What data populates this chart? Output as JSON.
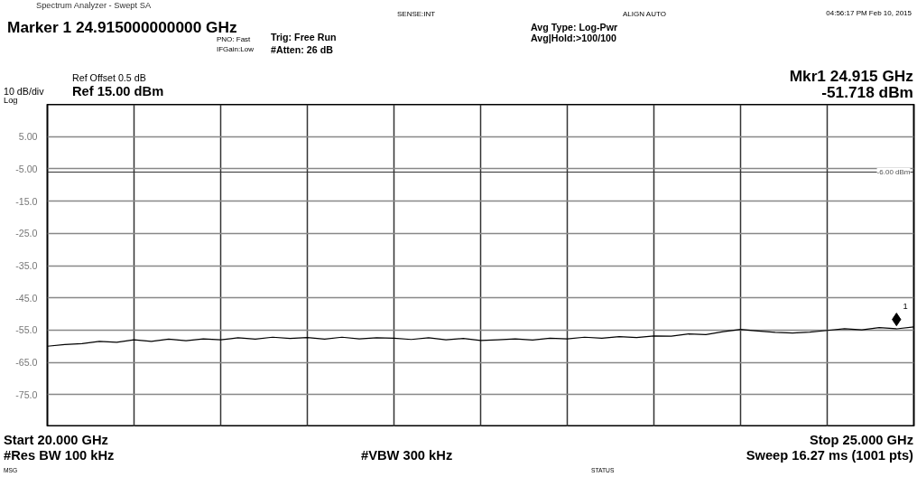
{
  "chart_data": {
    "type": "line",
    "title": "Spectrum Analyzer - Swept SA",
    "categories": [
      null,
      null,
      null,
      null,
      null,
      null,
      null,
      null,
      null,
      null,
      null,
      null,
      null,
      null,
      null,
      null,
      null,
      null,
      null,
      null,
      null,
      null,
      null,
      null,
      null,
      null,
      null,
      null,
      null,
      null,
      null,
      null,
      null,
      null,
      null,
      null,
      null,
      null,
      null,
      null,
      null,
      null,
      null,
      null,
      null,
      null,
      null,
      null,
      null,
      null,
      null
    ],
    "ylim": [
      -85,
      15
    ],
    "yticks": [
      {
        "value": 5,
        "label": "5.00"
      },
      {
        "value": -5,
        "label": "-5.00"
      },
      {
        "value": -15,
        "label": "-15.0"
      },
      {
        "value": -25,
        "label": "-25.0"
      },
      {
        "value": -35,
        "label": "-35.0"
      },
      {
        "value": -45,
        "label": "-45.0"
      },
      {
        "value": -55,
        "label": "-55.0"
      },
      {
        "value": -65,
        "label": "-65.0"
      },
      {
        "value": -75,
        "label": "-75.0"
      }
    ],
    "grid": true,
    "tick_labels": "y",
    "ref_lines": [
      {
        "axis": "y",
        "value": -6,
        "label": "-6.00 dBm",
        "color": "#333333"
      }
    ],
    "series": [
      {
        "color": "#000000",
        "values": [
          -60,
          -59.5,
          -59.2,
          -58.5,
          -58.8,
          -58,
          -58.5,
          -57.8,
          -58.3,
          -57.7,
          -58,
          -57.4,
          -57.8,
          -57.2,
          -57.6,
          -57.3,
          -57.8,
          -57.2,
          -57.7,
          -57.4,
          -57.5,
          -57.9,
          -57.4,
          -58,
          -57.6,
          -58.2,
          -58,
          -57.7,
          -58.1,
          -57.5,
          -57.7,
          -57.2,
          -57.5,
          -57,
          -57.3,
          -56.8,
          -56.9,
          -56.2,
          -56.4,
          -55.5,
          -54.8,
          -55.3,
          -55.7,
          -55.9,
          -55.6,
          -55.1,
          -54.6,
          -54.9,
          -54.2,
          -54.6,
          -54.0
        ]
      },
      {
        "type": "scatter",
        "marker": "diamond",
        "color": "#000000",
        "values": [
          null,
          null,
          null,
          null,
          null,
          null,
          null,
          null,
          null,
          null,
          null,
          null,
          null,
          null,
          null,
          null,
          null,
          null,
          null,
          null,
          null,
          null,
          null,
          null,
          null,
          null,
          null,
          null,
          null,
          null,
          null,
          null,
          null,
          null,
          null,
          null,
          null,
          null,
          null,
          null,
          null,
          null,
          null,
          null,
          null,
          null,
          null,
          null,
          null,
          -51.7,
          null
        ]
      }
    ],
    "annotations": [
      "Marker 1 24.915000000000 GHz",
      "PNO: Fast",
      "IFGain:Low",
      "Trig: Free Run",
      "#Atten: 26 dB",
      "Avg Type: Log-Pwr",
      "Avg|Hold:>100/100",
      "04:56:17 PM Feb 10, 2015",
      "Ref Offset 0.5 dB",
      "10 dB/div",
      "Log",
      "Ref 15.00 dBm",
      "Mkr1 24.915 GHz",
      "-51.718 dBm",
      "Start 20.000 GHz",
      "#Res BW 100 kHz",
      "#VBW 300 kHz",
      "Stop 25.000 GHz",
      "Sweep  16.27 ms (1001 pts)",
      "SENSE:INT",
      "ALIGN AUTO",
      "MSG",
      "STATUS",
      "1"
    ]
  }
}
